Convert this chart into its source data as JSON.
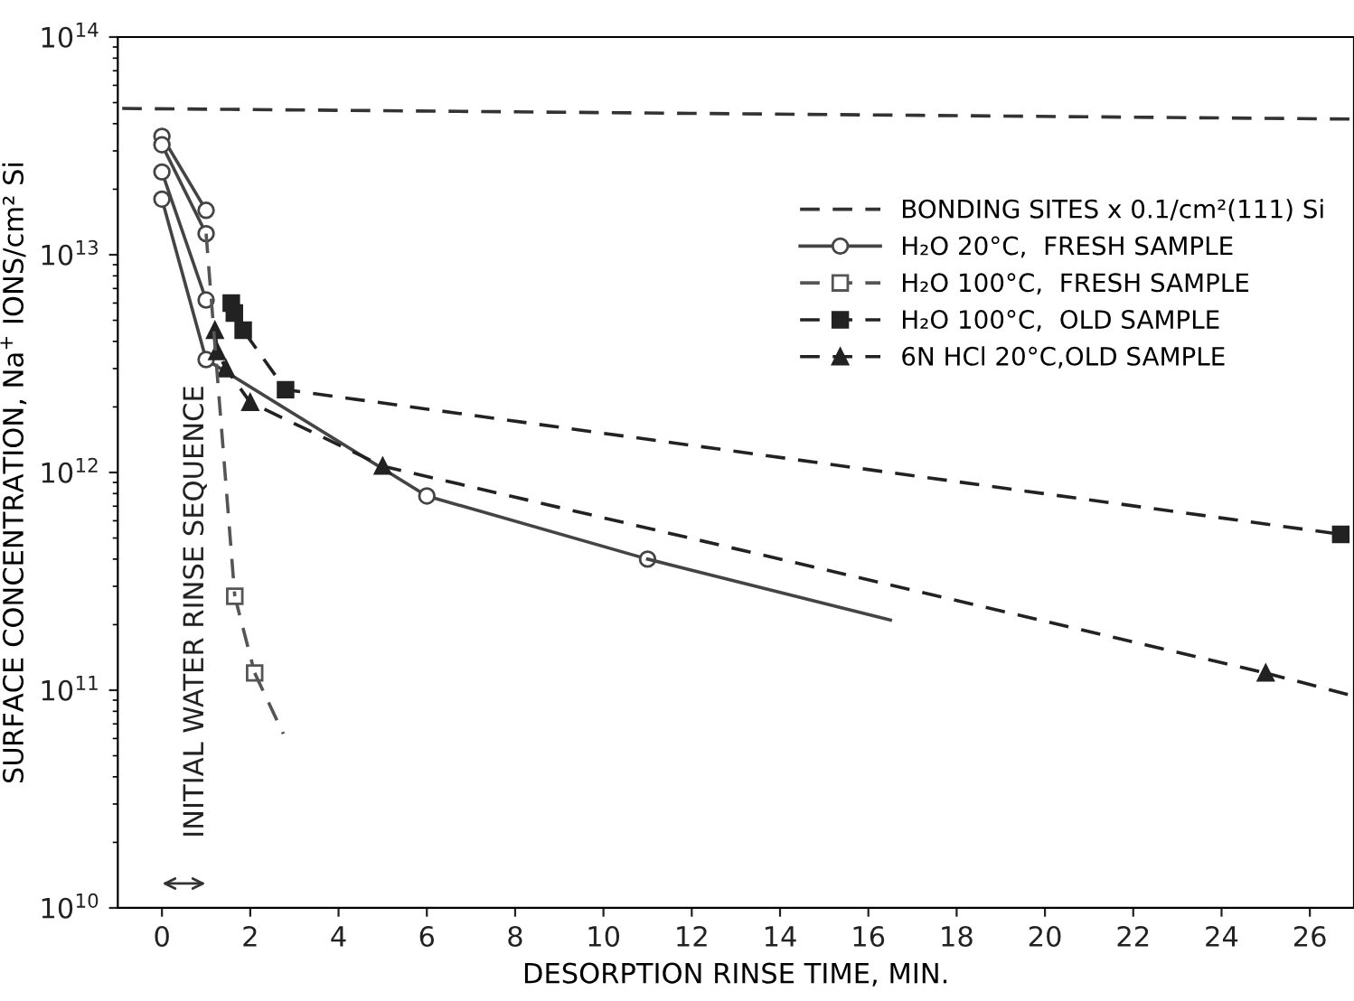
{
  "chart_data": {
    "type": "line",
    "xlabel": "DESORPTION RINSE TIME, MIN.",
    "ylabel": "SURFACE CONCENTRATION, Na$^{+}$ IONS/cm² Si",
    "log": "y",
    "xlim": [
      -1,
      27
    ],
    "ylim": [
      10000000000.0,
      100000000000000.0
    ],
    "xticks": [
      0,
      2,
      4,
      6,
      8,
      10,
      12,
      14,
      16,
      18,
      20,
      22,
      24,
      26
    ],
    "yticks": [
      {
        "value": 10000000000.0,
        "label": "10$^{10}$"
      },
      {
        "value": 100000000000.0,
        "label": "10$^{11}$"
      },
      {
        "value": 1000000000000.0,
        "label": "10$^{12}$"
      },
      {
        "value": 10000000000000.0,
        "label": "10$^{13}$"
      },
      {
        "value": 100000000000000.0,
        "label": "10$^{14}$"
      }
    ],
    "grid": false,
    "legend": "top right",
    "annotations": [
      "INITIAL WATER RINSE SEQUENCE"
    ],
    "series": [
      {
        "name": "BONDING SITES x 0.1/cm²(111) Si",
        "color": "#333333",
        "marker": "none",
        "line_style": "dashed",
        "x": [
          -0.9,
          26.9
        ],
        "values": [
          47000000000000.0,
          42000000000000.0
        ]
      },
      {
        "name": "H₂O 20°C,  FRESH SAMPLE",
        "color": "#444444",
        "marker": "circle",
        "line_style": "solid",
        "x": [
          0,
          1,
          6,
          11
        ],
        "values": [
          18000000000000.0,
          3300000000000.0,
          780000000000.0,
          400000000000.0
        ]
      },
      {
        "name": "H₂O 100°C,  FRESH SAMPLE",
        "color": "#555555",
        "marker": "square",
        "line_style": "dashed",
        "x": [
          1.65,
          2.1
        ],
        "values": [
          270000000000.0,
          120000000000.0
        ]
      },
      {
        "name": "H₂O 100°C,  OLD SAMPLE",
        "color": "#222222",
        "marker": "square_filled",
        "line_style": "dashed",
        "x": [
          1.57,
          1.64,
          1.84,
          2.8,
          26.7
        ],
        "values": [
          6000000000000.0,
          5400000000000.0,
          4500000000000.0,
          2400000000000.0,
          520000000000.0
        ]
      },
      {
        "name": "6N HCl 20°C,OLD SAMPLE",
        "color": "#222222",
        "marker": "triangle",
        "line_style": "dashed",
        "x": [
          1.2,
          1.25,
          1.45,
          2.0,
          5,
          25
        ],
        "values": [
          4500000000000.0,
          3600000000000.0,
          3000000000000.0,
          2100000000000.0,
          1070000000000.0,
          120000000000.0
        ]
      },
      {
        "color": "#444444",
        "marker": "circle",
        "line_style": "solid",
        "x": [
          0,
          1
        ],
        "values": [
          35000000000000.0,
          16000000000000.0
        ]
      },
      {
        "color": "#444444",
        "marker": "circle",
        "line_style": "solid",
        "x": [
          0,
          1
        ],
        "values": [
          32000000000000.0,
          12500000000000.0
        ]
      },
      {
        "color": "#444444",
        "marker": "circle",
        "line_style": "solid",
        "x": [
          0,
          1
        ],
        "values": [
          24000000000000.0,
          6200000000000.0
        ]
      },
      {
        "color": "#444444",
        "marker": "none",
        "line_style": "solid",
        "x": [
          11,
          16.5
        ],
        "values": [
          400000000000.0,
          210000000000.0
        ]
      },
      {
        "color": "#555555",
        "marker": "none",
        "line_style": "dashed",
        "x": [
          1,
          1.65
        ],
        "values": [
          12500000000000.0,
          270000000000.0
        ]
      },
      {
        "color": "#555555",
        "marker": "none",
        "line_style": "dashed",
        "x": [
          2.1,
          2.75
        ],
        "values": [
          120000000000.0,
          63000000000.0
        ]
      },
      {
        "color": "#222222",
        "marker": "none",
        "line_style": "dashed",
        "x": [
          25,
          26.9
        ],
        "values": [
          120000000000.0,
          95000000000.0
        ]
      }
    ]
  }
}
